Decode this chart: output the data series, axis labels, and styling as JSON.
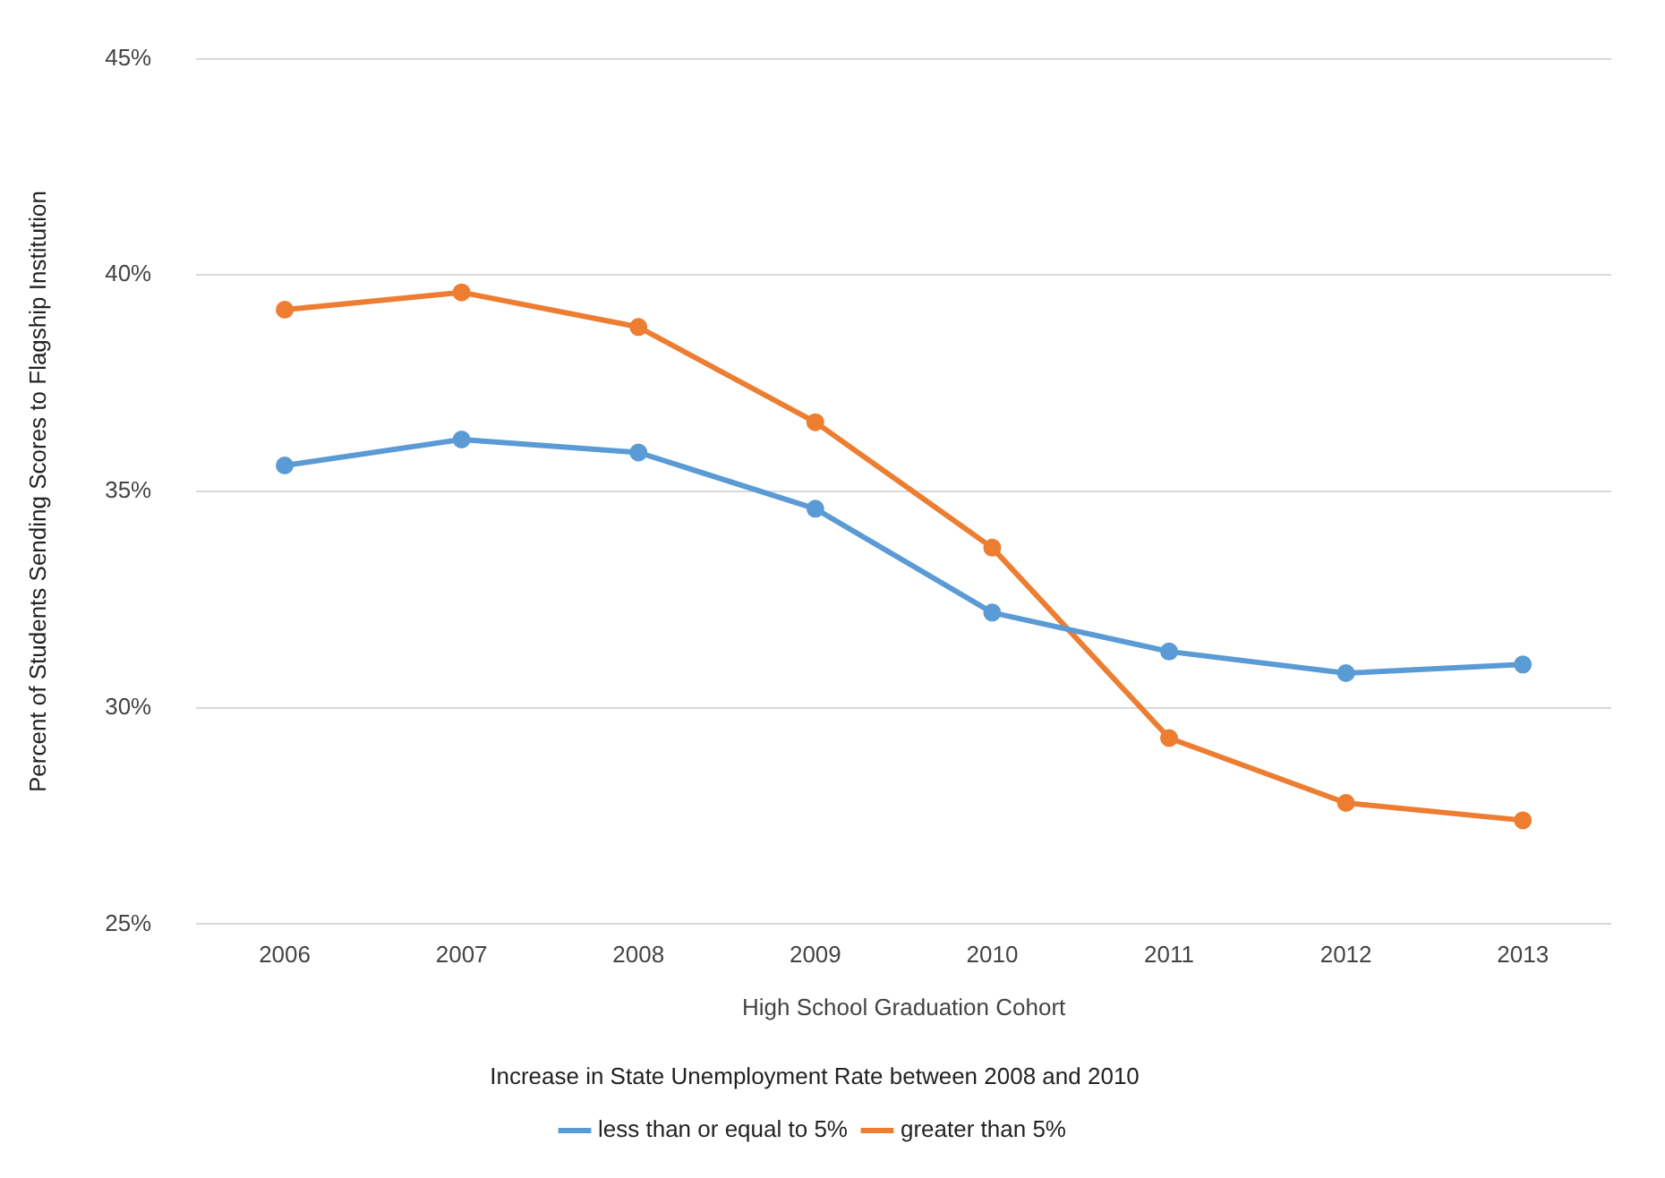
{
  "chart_data": {
    "type": "line",
    "xlabel": "High School Graduation Cohort",
    "ylabel": "Percent of Students Sending Scores to Flagship Institution",
    "legend_title": "Increase in State Unemployment Rate between 2008 and 2010",
    "categories": [
      "2006",
      "2007",
      "2008",
      "2009",
      "2010",
      "2011",
      "2012",
      "2013"
    ],
    "series": [
      {
        "name": "less than or equal to 5%",
        "color": "#5b9bd5",
        "values": [
          35.6,
          36.2,
          35.9,
          34.6,
          32.2,
          31.3,
          30.8,
          31.0
        ]
      },
      {
        "name": "greater than 5%",
        "color": "#ed7d31",
        "values": [
          39.2,
          39.6,
          38.8,
          36.6,
          33.7,
          29.3,
          27.8,
          27.4
        ]
      }
    ],
    "ylim": [
      25,
      45
    ],
    "yticks": [
      {
        "value": 25,
        "label": "25%"
      },
      {
        "value": 30,
        "label": "30%"
      },
      {
        "value": 35,
        "label": "35%"
      },
      {
        "value": 40,
        "label": "40%"
      },
      {
        "value": 45,
        "label": "45%"
      }
    ],
    "grid": "y",
    "legend": "bottom",
    "marker": "circle",
    "line_style": "solid"
  }
}
